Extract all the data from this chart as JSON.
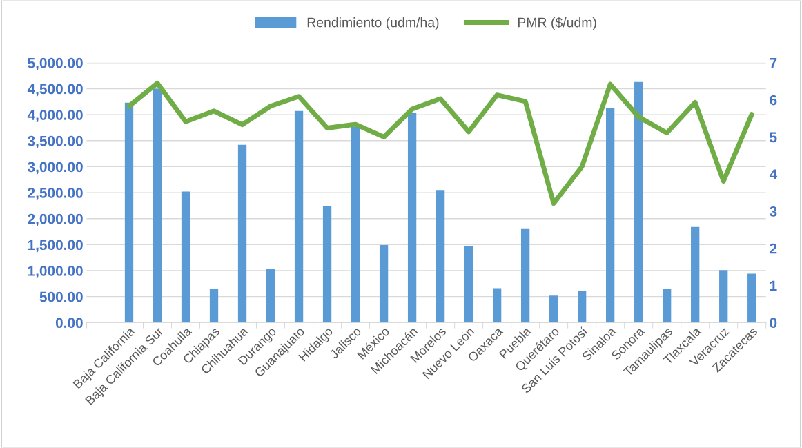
{
  "chart_data": {
    "type": "bar",
    "categories": [
      null,
      "Baja California",
      "Baja California Sur",
      "Coahuila",
      "Chiapas",
      "Chihuahua",
      "Durango",
      "Guanajuato",
      "Hidalgo",
      "Jalisco",
      "México",
      "Michoacán",
      "Morelos",
      "Nuevo León",
      "Oaxaca",
      "Puebla",
      "Querétaro",
      "San Luis Potosí",
      "Sinaloa",
      "Sonora",
      "Tamaulipas",
      "Tlaxcala",
      "Veracruz",
      "Zacatecas"
    ],
    "series": [
      {
        "name": "Rendimiento (udm/ha)",
        "color": "#5b9bd5",
        "values": [
          null,
          4230,
          4500,
          2520,
          640,
          3420,
          1030,
          4070,
          2240,
          3770,
          1490,
          4040,
          2550,
          1470,
          660,
          1800,
          520,
          610,
          4130,
          4630,
          650,
          1840,
          1010,
          940
        ]
      },
      {
        "name": "PMR ($/udm)",
        "type": "line",
        "axis": "y2",
        "color": "#70ad47",
        "values": [
          null,
          5.83,
          6.45,
          5.41,
          5.7,
          5.33,
          5.83,
          6.09,
          5.24,
          5.34,
          5.0,
          5.75,
          6.03,
          5.14,
          6.13,
          5.96,
          3.21,
          4.2,
          6.42,
          5.54,
          5.11,
          5.93,
          3.81,
          5.61
        ]
      }
    ],
    "ylim": [
      0,
      5000
    ],
    "yticks": [
      {
        "value": 0,
        "label": "0.00"
      },
      {
        "value": 500,
        "label": "500.00"
      },
      {
        "value": 1000,
        "label": "1,000.00"
      },
      {
        "value": 1500,
        "label": "1,500.00"
      },
      {
        "value": 2000,
        "label": "2,000.00"
      },
      {
        "value": 2500,
        "label": "2,500.00"
      },
      {
        "value": 3000,
        "label": "3,000.00"
      },
      {
        "value": 3500,
        "label": "3,500.00"
      },
      {
        "value": 4000,
        "label": "4,000.00"
      },
      {
        "value": 4500,
        "label": "4,500.00"
      },
      {
        "value": 5000,
        "label": "5,000.00"
      }
    ],
    "y2lim": [
      0,
      7
    ],
    "y2ticks": [
      0,
      1,
      2,
      3,
      4,
      5,
      6,
      7
    ],
    "grid": "y",
    "legend": "top",
    "marker": "none",
    "line_style": "solid"
  }
}
